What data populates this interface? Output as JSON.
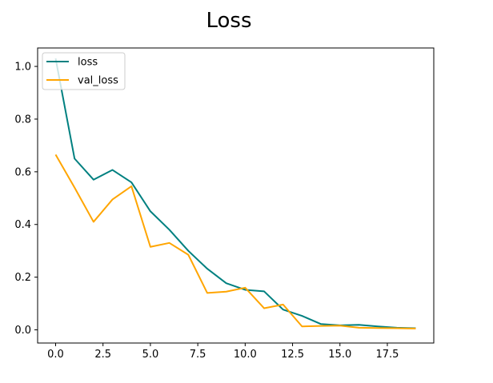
{
  "chart_data": {
    "type": "line",
    "title": "Loss",
    "xlabel": "",
    "ylabel": "",
    "xlim": [
      -0.95,
      19.95
    ],
    "ylim": [
      -0.05,
      1.07
    ],
    "x_ticks": [
      0.0,
      2.5,
      5.0,
      7.5,
      10.0,
      12.5,
      15.0,
      17.5
    ],
    "x_tick_labels": [
      "0.0",
      "2.5",
      "5.0",
      "7.5",
      "10.0",
      "12.5",
      "15.0",
      "17.5"
    ],
    "y_ticks": [
      0.0,
      0.2,
      0.4,
      0.6,
      0.8,
      1.0
    ],
    "y_tick_labels": [
      "0.0",
      "0.2",
      "0.4",
      "0.6",
      "0.8",
      "1.0"
    ],
    "grid": false,
    "legend_position": "upper left",
    "x": [
      0,
      1,
      2,
      3,
      4,
      5,
      6,
      7,
      8,
      9,
      10,
      11,
      12,
      13,
      14,
      15,
      16,
      17,
      18,
      19
    ],
    "series": [
      {
        "name": "loss",
        "color": "#008080",
        "values": [
          1.03,
          0.65,
          0.57,
          0.607,
          0.56,
          0.45,
          0.38,
          0.3,
          0.232,
          0.177,
          0.152,
          0.146,
          0.077,
          0.053,
          0.022,
          0.017,
          0.019,
          0.013,
          0.008,
          0.006
        ]
      },
      {
        "name": "val_loss",
        "color": "#FFA500",
        "values": [
          0.665,
          0.54,
          0.41,
          0.495,
          0.545,
          0.315,
          0.33,
          0.285,
          0.14,
          0.145,
          0.16,
          0.082,
          0.096,
          0.013,
          0.015,
          0.016,
          0.008,
          0.007,
          0.006,
          0.005
        ]
      }
    ]
  }
}
